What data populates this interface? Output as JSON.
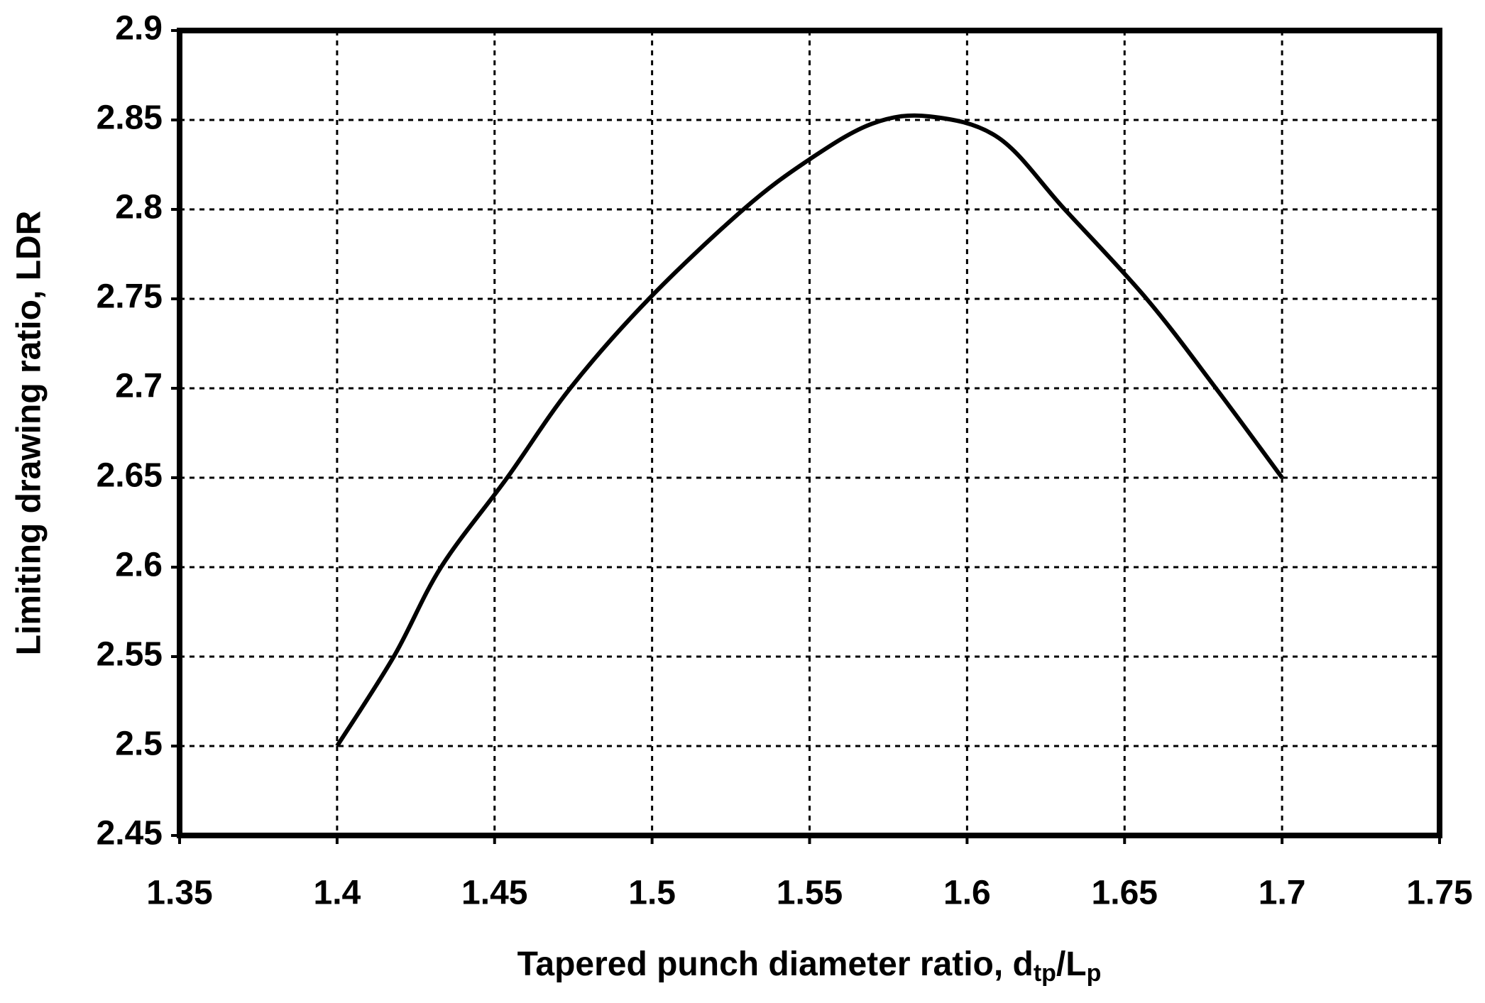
{
  "chart_data": {
    "type": "line",
    "x_label_parts": [
      "Tapered punch diameter ratio,  d",
      "tp",
      "/L",
      "p"
    ],
    "y_label": "Limiting drawing ratio,  LDR",
    "x": [
      1.4,
      1.418,
      1.433,
      1.454,
      1.474,
      1.499,
      1.529,
      1.55,
      1.57,
      1.588,
      1.61,
      1.631,
      1.657,
      1.679,
      1.7
    ],
    "values": [
      2.5,
      2.55,
      2.6,
      2.65,
      2.7,
      2.75,
      2.8,
      2.828,
      2.848,
      2.852,
      2.84,
      2.8,
      2.75,
      2.7,
      2.65
    ],
    "color": "#000000",
    "xlim": [
      1.35,
      1.75
    ],
    "xticks": [
      1.35,
      1.4,
      1.45,
      1.5,
      1.55,
      1.6,
      1.65,
      1.7,
      1.75
    ],
    "ylim": [
      2.45,
      2.9
    ],
    "yticks": [
      2.45,
      2.5,
      2.55,
      2.6,
      2.65,
      2.7,
      2.75,
      2.8,
      2.85,
      2.9
    ],
    "grid": true
  }
}
